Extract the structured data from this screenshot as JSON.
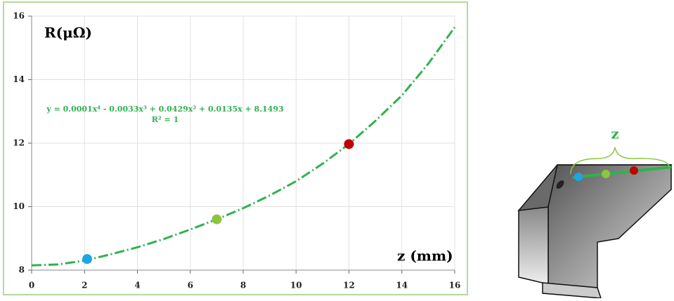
{
  "chart_data": {
    "type": "line",
    "ylabel": "R(μΩ)",
    "xlabel": "z (mm)",
    "annotations": [
      "y = 0.0001x⁴ - 0.0033x³ + 0.0429x² + 0.0135x + 8.1493",
      "R² = 1"
    ],
    "xlim": [
      0,
      16
    ],
    "ylim": [
      8,
      16
    ],
    "xticks": [
      0,
      2,
      4,
      6,
      8,
      10,
      12,
      14,
      16
    ],
    "yticks": [
      8,
      10,
      12,
      14,
      16
    ],
    "grid": true,
    "curve": {
      "color": "#2fb24e",
      "x": [
        0,
        1,
        2,
        3,
        4,
        5,
        6,
        7,
        8,
        9,
        10,
        11,
        12,
        13,
        14,
        15,
        16
      ],
      "values": [
        8.15,
        8.18,
        8.3,
        8.5,
        8.72,
        8.98,
        9.28,
        9.6,
        9.95,
        10.35,
        10.8,
        11.35,
        11.97,
        12.7,
        13.5,
        14.5,
        15.65
      ]
    },
    "points": {
      "x": [
        2.1,
        7,
        12
      ],
      "values": [
        8.35,
        9.6,
        11.97
      ],
      "colors": [
        "#1ca6e6",
        "#8cc63f",
        "#c00000"
      ]
    }
  },
  "diagram": {
    "label": "z"
  }
}
